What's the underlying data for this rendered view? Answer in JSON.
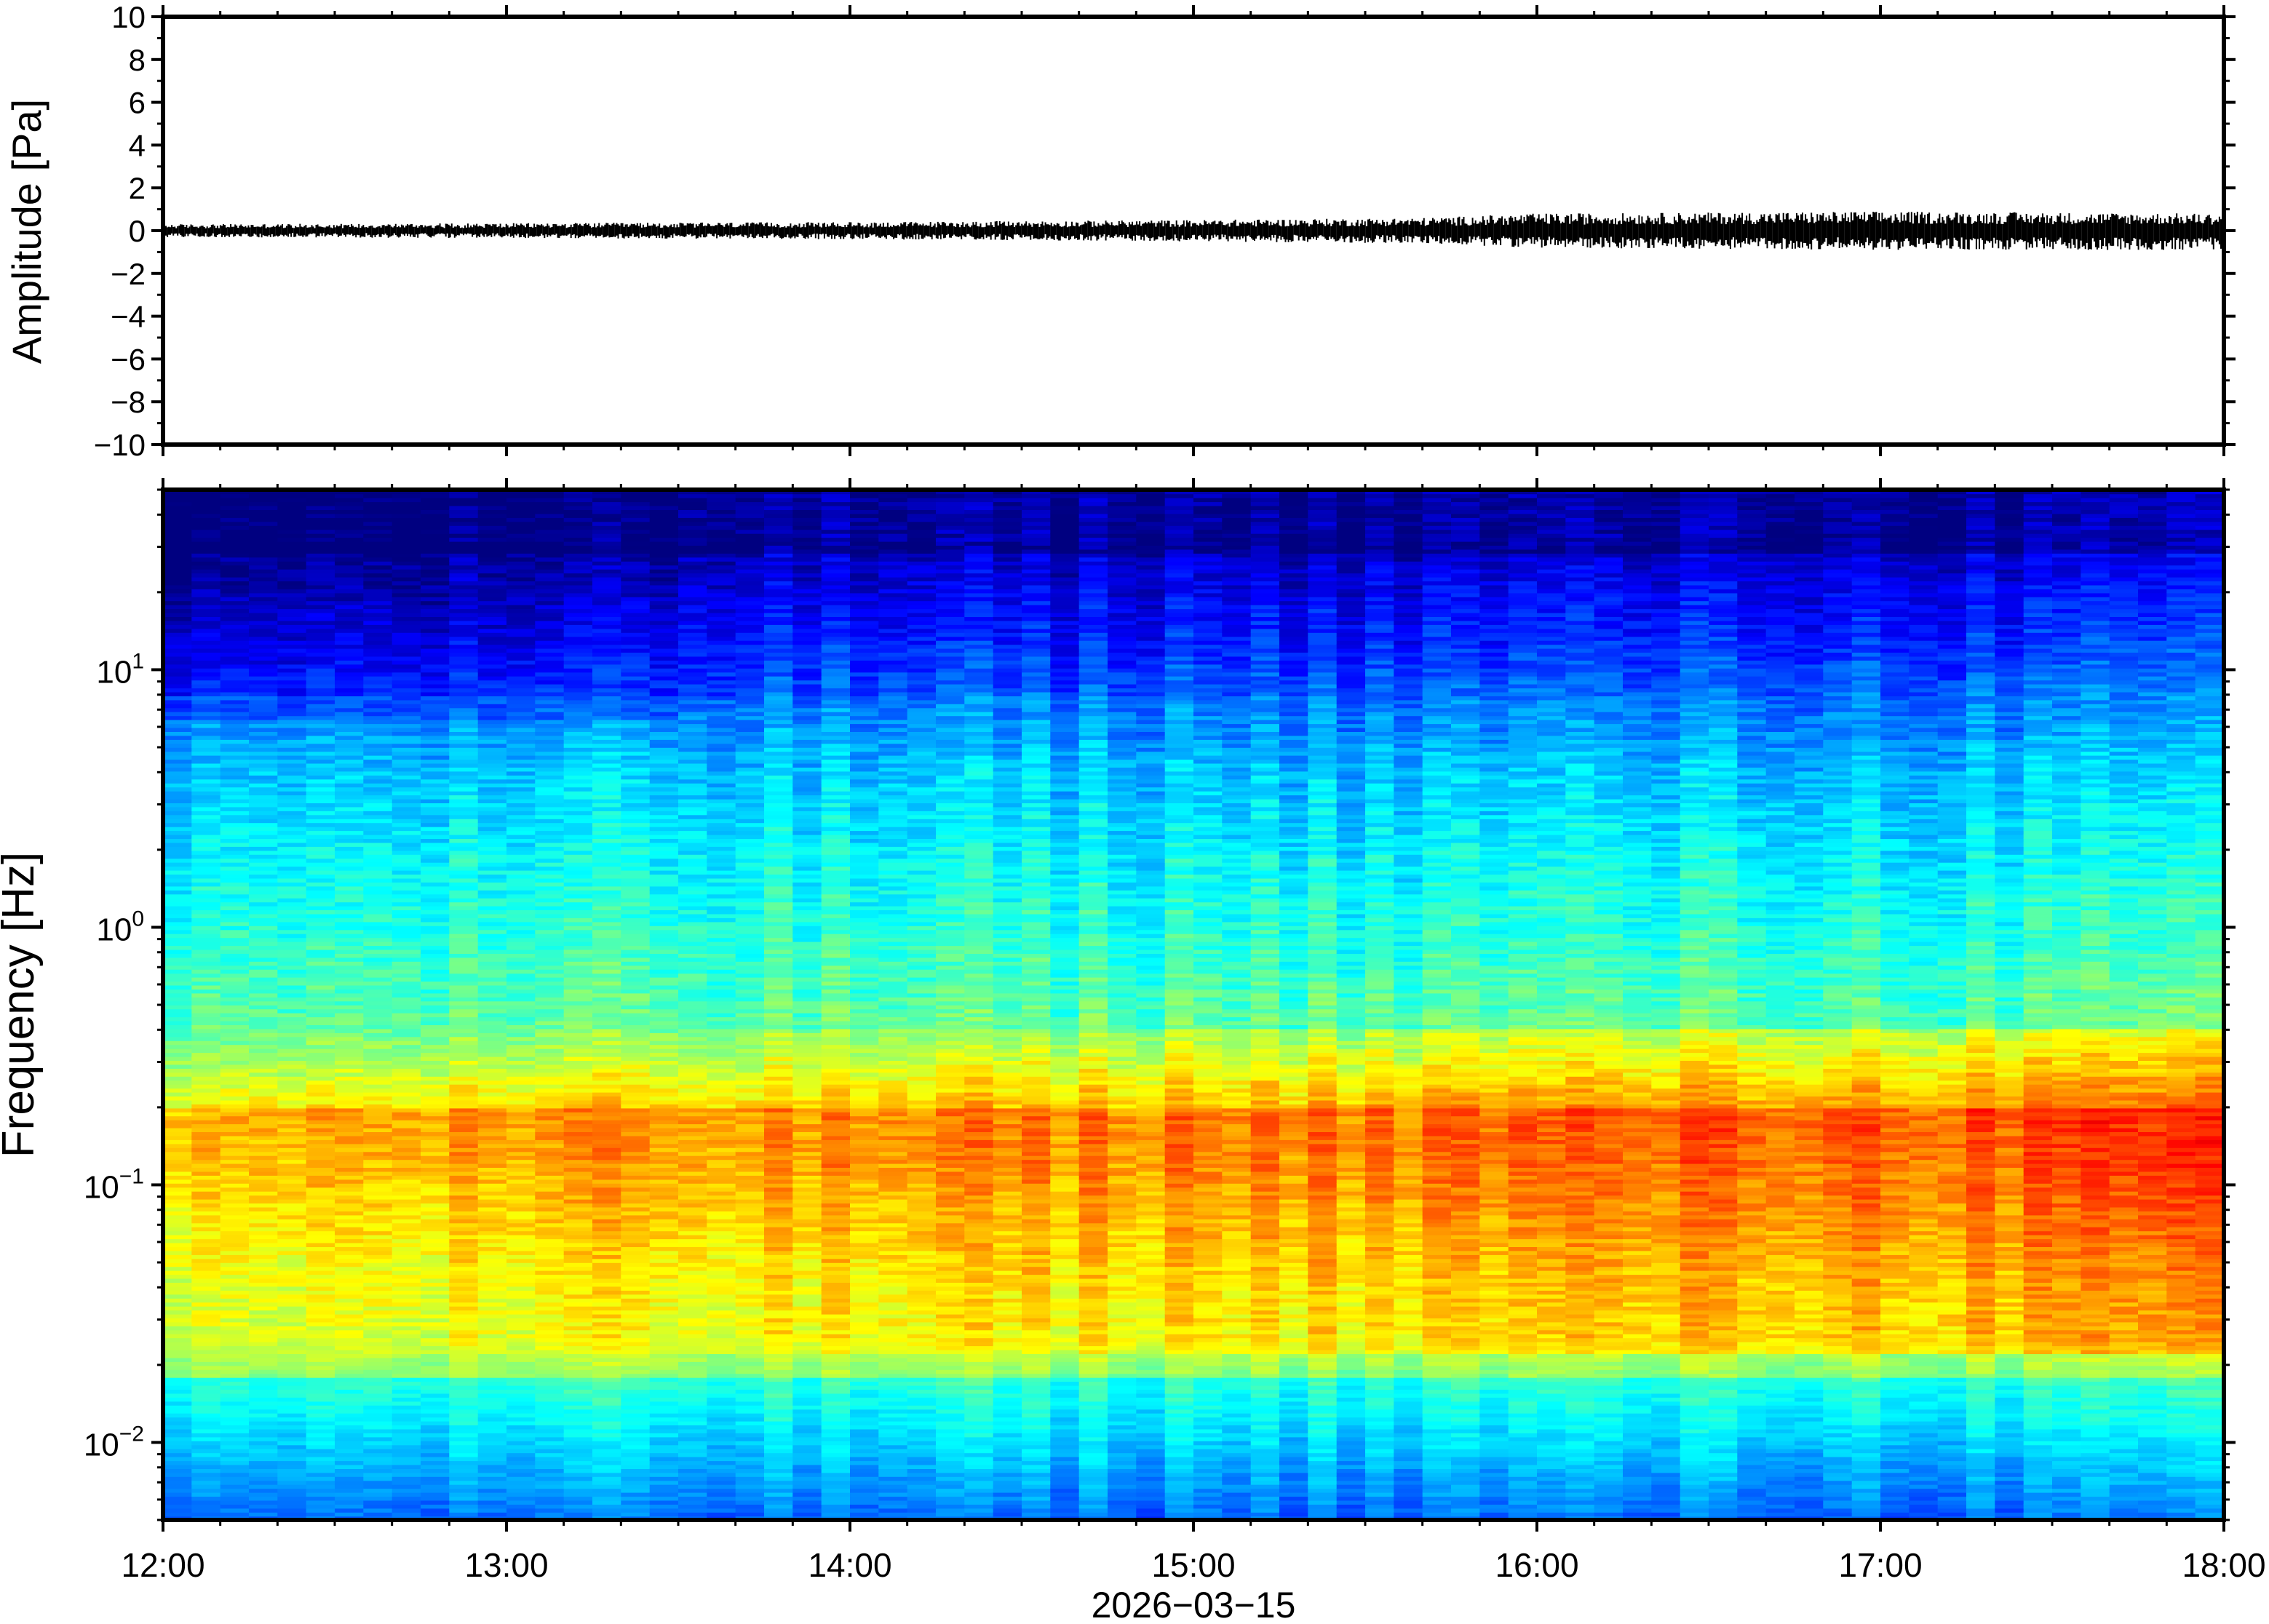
{
  "chart_data": [
    {
      "type": "line",
      "panel": "waveform",
      "ylabel": "Amplitude [Pa]",
      "ylim": [
        -10,
        10
      ],
      "y_ticks": [
        {
          "value": 10,
          "label": "10"
        },
        {
          "value": 8,
          "label": "8"
        },
        {
          "value": 6,
          "label": "6"
        },
        {
          "value": 4,
          "label": "4"
        },
        {
          "value": 2,
          "label": "2"
        },
        {
          "value": 0,
          "label": "0"
        },
        {
          "value": -2,
          "label": "−2"
        },
        {
          "value": -4,
          "label": "−4"
        },
        {
          "value": -6,
          "label": "−6"
        },
        {
          "value": -8,
          "label": "−8"
        },
        {
          "value": -10,
          "label": "−10"
        }
      ],
      "xlim": [
        "12:00",
        "18:00"
      ],
      "envelope": {
        "time": [
          "12:00",
          "13:00",
          "14:00",
          "15:00",
          "15:40",
          "16:00",
          "17:00",
          "18:00"
        ],
        "max_pa": [
          0.3,
          0.35,
          0.4,
          0.5,
          0.6,
          0.8,
          0.9,
          0.8
        ],
        "min_pa": [
          -0.3,
          -0.35,
          -0.4,
          -0.5,
          -0.6,
          -0.8,
          -0.9,
          -0.9
        ]
      },
      "grid": false,
      "color": "#000000"
    },
    {
      "type": "heatmap",
      "panel": "spectrogram",
      "ylabel": "Frequency [Hz]",
      "xlabel": "2026−03−15",
      "y_scale": "log",
      "ylim_hz": [
        0.005,
        50
      ],
      "y_ticks": [
        {
          "value": 10,
          "base": "10",
          "exp": "1"
        },
        {
          "value": 1,
          "base": "10",
          "exp": "0"
        },
        {
          "value": 0.1,
          "base": "10",
          "exp": "−1"
        },
        {
          "value": 0.01,
          "base": "10",
          "exp": "−2"
        }
      ],
      "x_ticks": [
        "12:00",
        "13:00",
        "14:00",
        "15:00",
        "16:00",
        "17:00",
        "18:00"
      ],
      "colormap": "jet",
      "grid": false
    }
  ]
}
